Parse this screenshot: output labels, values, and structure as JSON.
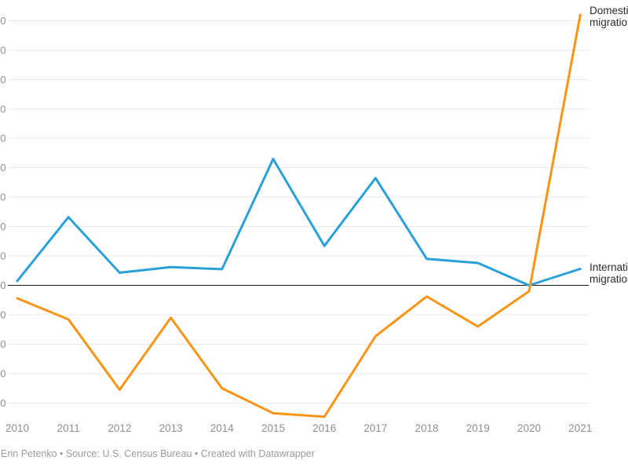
{
  "chart_data": {
    "type": "line",
    "x": [
      2010,
      2011,
      2012,
      2013,
      2014,
      2015,
      2016,
      2017,
      2018,
      2019,
      2020,
      2021
    ],
    "series": [
      {
        "name": "Domestic migration",
        "color": "#fa9416",
        "values": [
          -440,
          -1160,
          -3550,
          -1100,
          -3500,
          -4350,
          -4470,
          -1730,
          -380,
          -1400,
          -200,
          9200
        ]
      },
      {
        "name": "International migration",
        "color": "#2aa0da",
        "values": [
          150,
          2320,
          430,
          620,
          550,
          4300,
          1340,
          3650,
          900,
          760,
          0,
          560
        ]
      }
    ],
    "title": "",
    "xlabel": "",
    "ylabel": "",
    "ylim": [
      -4700,
      9700
    ],
    "y_gridline_step": 1000,
    "y_gridline_range": [
      -4000,
      9000
    ],
    "grid": true,
    "zero_baseline": true,
    "legend_position": "direct-labels-right",
    "y_tick_labels_truncated_to": "0"
  },
  "axis": {
    "y_tick_visible_label": "0"
  },
  "labels": {
    "domestic": {
      "line1": "Domestic",
      "line2": "migration"
    },
    "international": {
      "line1": "International",
      "line2": "migration"
    }
  },
  "footer": {
    "text": "Erin Petenko • Source: U.S. Census Bureau • Created with Datawrapper"
  },
  "colors": {
    "grid": "#e9e9e9",
    "zero_line": "#1a1a1a",
    "tick_text": "#8f8f8f",
    "series_label_text": "#2b2b2b",
    "footer_text": "#9b9b9b",
    "background": "#ffffff"
  }
}
